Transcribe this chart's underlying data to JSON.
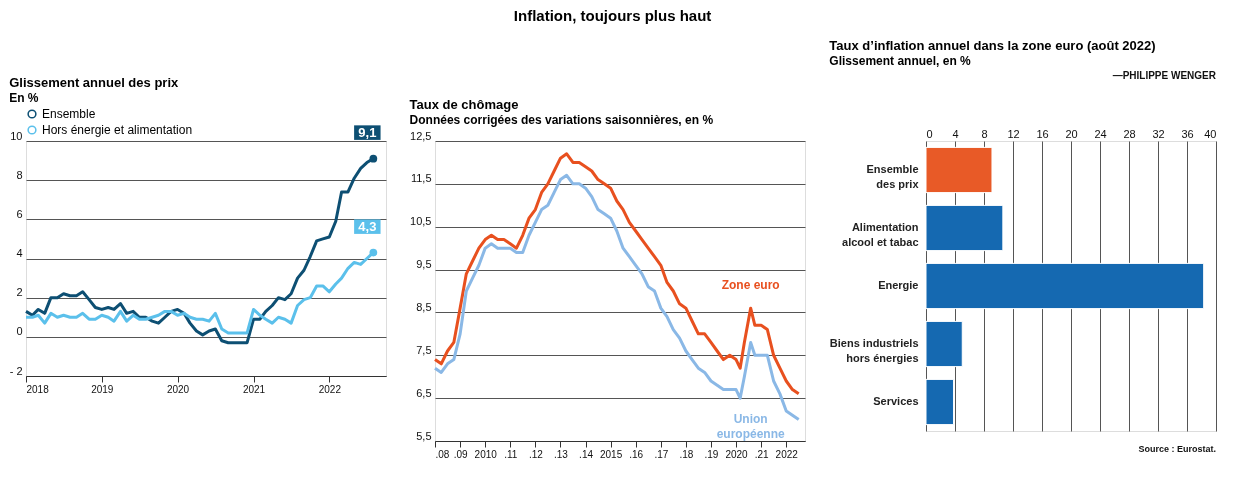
{
  "chart_data": [
    {
      "type": "line",
      "title": "Glissement annuel des prix",
      "subtitle": "En %",
      "annotations": [
        "Inflation, toujours plus haut",
        {
          "text": "9,1",
          "x": "2022-08",
          "y": 9.1
        },
        {
          "text": "4,3",
          "x": "2022-08",
          "y": 4.3
        }
      ],
      "xlim": [
        "2018-01",
        "2022-10"
      ],
      "xticks": [
        {
          "value": "2018-01",
          "label": "2018"
        },
        {
          "value": "2019-01",
          "label": "2019"
        },
        {
          "value": "2020-01",
          "label": "2020"
        },
        {
          "value": "2021-01",
          "label": "2021"
        },
        {
          "value": "2022-01",
          "label": "2022"
        }
      ],
      "ylim": [
        -2,
        10
      ],
      "yticks": [
        {
          "value": -2,
          "label": "- 2"
        },
        0,
        2,
        4,
        6,
        8,
        10
      ],
      "grid": "y",
      "legend": "top left",
      "marker": "none",
      "line_style": "solid",
      "x": [
        "2018-01",
        "2018-02",
        "2018-03",
        "2018-04",
        "2018-05",
        "2018-06",
        "2018-07",
        "2018-08",
        "2018-09",
        "2018-10",
        "2018-11",
        "2018-12",
        "2019-01",
        "2019-02",
        "2019-03",
        "2019-04",
        "2019-05",
        "2019-06",
        "2019-07",
        "2019-08",
        "2019-09",
        "2019-10",
        "2019-11",
        "2019-12",
        "2020-01",
        "2020-02",
        "2020-03",
        "2020-04",
        "2020-05",
        "2020-06",
        "2020-07",
        "2020-08",
        "2020-09",
        "2020-10",
        "2020-11",
        "2020-12",
        "2021-01",
        "2021-02",
        "2021-03",
        "2021-04",
        "2021-05",
        "2021-06",
        "2021-07",
        "2021-08",
        "2021-09",
        "2021-10",
        "2021-11",
        "2021-12",
        "2022-01",
        "2022-02",
        "2022-03",
        "2022-04",
        "2022-05",
        "2022-06",
        "2022-07",
        "2022-08"
      ],
      "series": [
        {
          "name": "Ensemble",
          "color": "#0d4f73",
          "values": [
            1.3,
            1.1,
            1.4,
            1.2,
            2.0,
            2.0,
            2.2,
            2.1,
            2.1,
            2.3,
            1.9,
            1.5,
            1.4,
            1.5,
            1.4,
            1.7,
            1.2,
            1.3,
            1.0,
            1.0,
            0.8,
            0.7,
            1.0,
            1.3,
            1.4,
            1.2,
            0.7,
            0.3,
            0.1,
            0.3,
            0.4,
            -0.2,
            -0.3,
            -0.3,
            -0.3,
            -0.3,
            0.9,
            0.9,
            1.3,
            1.6,
            2.0,
            1.9,
            2.2,
            3.0,
            3.4,
            4.1,
            4.9,
            5.0,
            5.1,
            5.9,
            7.4,
            7.4,
            8.1,
            8.6,
            8.9,
            9.1
          ]
        },
        {
          "name": "Hors énergie et alimentation",
          "color": "#5bc0eb",
          "values": [
            1.0,
            1.0,
            1.1,
            0.7,
            1.2,
            1.0,
            1.1,
            1.0,
            1.0,
            1.2,
            0.9,
            0.9,
            1.1,
            1.0,
            0.8,
            1.3,
            0.8,
            1.1,
            0.9,
            0.9,
            1.0,
            1.1,
            1.3,
            1.3,
            1.1,
            1.2,
            1.0,
            0.9,
            0.9,
            0.8,
            1.2,
            0.4,
            0.2,
            0.2,
            0.2,
            0.2,
            1.4,
            1.1,
            0.9,
            0.7,
            1.0,
            0.9,
            0.7,
            1.6,
            1.9,
            2.0,
            2.6,
            2.6,
            2.3,
            2.7,
            3.0,
            3.5,
            3.8,
            3.7,
            4.0,
            4.3
          ]
        }
      ]
    },
    {
      "type": "line",
      "title": "Taux de chômage",
      "subtitle": "Données corrigées des variations saisonnières, en %",
      "xlim": [
        "2008-01",
        "2022-10"
      ],
      "xticks": [
        {
          "value": "2008-01",
          "label": ".08"
        },
        {
          "value": "2009-01",
          "label": ".09"
        },
        {
          "value": "2010-01",
          "label": "2010"
        },
        {
          "value": "2011-01",
          "label": ".11"
        },
        {
          "value": "2012-01",
          "label": ".12"
        },
        {
          "value": "2013-01",
          "label": ".13"
        },
        {
          "value": "2014-01",
          "label": ".14"
        },
        {
          "value": "2015-01",
          "label": "2015"
        },
        {
          "value": "2016-01",
          "label": ".16"
        },
        {
          "value": "2017-01",
          "label": ".17"
        },
        {
          "value": "2018-01",
          "label": ".18"
        },
        {
          "value": "2019-01",
          "label": ".19"
        },
        {
          "value": "2020-01",
          "label": "2020"
        },
        {
          "value": "2021-01",
          "label": ".21"
        },
        {
          "value": "2022-01",
          "label": "2022"
        }
      ],
      "ylim": [
        5.5,
        12.5
      ],
      "yticks": [
        {
          "value": 5.5,
          "label": "5,5"
        },
        {
          "value": 6.5,
          "label": "6,5"
        },
        {
          "value": 7.5,
          "label": "7,5"
        },
        {
          "value": 8.5,
          "label": "8,5"
        },
        {
          "value": 9.5,
          "label": "9,5"
        },
        {
          "value": 10.5,
          "label": "10,5"
        },
        {
          "value": 11.5,
          "label": "11,5"
        },
        {
          "value": 12.5,
          "label": "12,5"
        }
      ],
      "grid": "y",
      "marker": "none",
      "line_style": "solid",
      "x": [
        "2008-01",
        "2008-04",
        "2008-07",
        "2008-10",
        "2009-01",
        "2009-04",
        "2009-07",
        "2009-10",
        "2010-01",
        "2010-04",
        "2010-07",
        "2010-10",
        "2011-01",
        "2011-04",
        "2011-07",
        "2011-10",
        "2012-01",
        "2012-04",
        "2012-07",
        "2012-10",
        "2013-01",
        "2013-04",
        "2013-07",
        "2013-10",
        "2014-01",
        "2014-04",
        "2014-07",
        "2014-10",
        "2015-01",
        "2015-04",
        "2015-07",
        "2015-10",
        "2016-01",
        "2016-04",
        "2016-07",
        "2016-10",
        "2017-01",
        "2017-04",
        "2017-07",
        "2017-10",
        "2018-01",
        "2018-04",
        "2018-07",
        "2018-10",
        "2019-01",
        "2019-04",
        "2019-07",
        "2019-10",
        "2020-01",
        "2020-03",
        "2020-05",
        "2020-08",
        "2020-10",
        "2021-01",
        "2021-04",
        "2021-07",
        "2021-10",
        "2022-01",
        "2022-04",
        "2022-07"
      ],
      "series": [
        {
          "name": "Zone euro",
          "color": "#e8501f",
          "values": [
            7.4,
            7.3,
            7.6,
            7.8,
            8.6,
            9.4,
            9.7,
            10.0,
            10.2,
            10.3,
            10.2,
            10.2,
            10.1,
            10.0,
            10.3,
            10.7,
            10.9,
            11.3,
            11.5,
            11.8,
            12.1,
            12.2,
            12.0,
            12.0,
            11.9,
            11.8,
            11.6,
            11.5,
            11.4,
            11.1,
            10.9,
            10.6,
            10.4,
            10.2,
            10.0,
            9.8,
            9.6,
            9.2,
            9.0,
            8.7,
            8.6,
            8.3,
            8.0,
            8.0,
            7.8,
            7.6,
            7.4,
            7.5,
            7.4,
            7.2,
            7.8,
            8.6,
            8.2,
            8.2,
            8.1,
            7.5,
            7.2,
            6.9,
            6.7,
            6.6
          ]
        },
        {
          "name": "Union\neuropéenne",
          "color": "#8ab8e6",
          "values": [
            7.2,
            7.1,
            7.3,
            7.4,
            8.0,
            9.0,
            9.3,
            9.6,
            10.0,
            10.1,
            10.0,
            10.0,
            10.0,
            9.9,
            9.9,
            10.3,
            10.6,
            10.9,
            11.0,
            11.3,
            11.6,
            11.7,
            11.5,
            11.5,
            11.4,
            11.2,
            10.9,
            10.8,
            10.7,
            10.4,
            10.0,
            9.8,
            9.6,
            9.4,
            9.1,
            9.0,
            8.6,
            8.4,
            8.1,
            7.9,
            7.6,
            7.4,
            7.2,
            7.1,
            6.9,
            6.8,
            6.7,
            6.7,
            6.7,
            6.5,
            7.0,
            7.8,
            7.5,
            7.5,
            7.5,
            6.9,
            6.6,
            6.2,
            6.1,
            6.0
          ]
        }
      ]
    },
    {
      "type": "bar",
      "orientation": "horizontal",
      "title": "Taux d’inflation annuel dans la zone euro (août 2022)",
      "subtitle": "Glissement annuel, en %",
      "categories": [
        "Ensemble\ndes prix",
        "Alimentation\nalcool et tabac",
        "Energie",
        "Biens industriels\nhors énergies",
        "Services"
      ],
      "values": [
        9.1,
        10.6,
        38.3,
        5.0,
        3.8
      ],
      "colors": [
        "#e85a27",
        "#1569b1",
        "#1569b1",
        "#1569b1",
        "#1569b1"
      ],
      "xlim": [
        0,
        40
      ],
      "xticks": [
        0,
        4,
        8,
        12,
        16,
        20,
        24,
        28,
        32,
        36,
        40
      ],
      "grid": "x",
      "annotations": [
        "Source : Eurostat.",
        "—PHILIPPE WENGER"
      ]
    }
  ]
}
